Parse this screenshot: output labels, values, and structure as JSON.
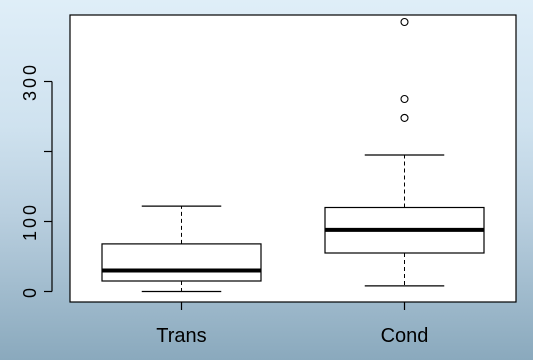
{
  "chart_data": {
    "type": "boxplot",
    "categories": [
      "Trans",
      "Cond"
    ],
    "ylim": [
      -15,
      395
    ],
    "yticks": [
      0,
      100,
      200,
      300
    ],
    "ytick_labels": [
      "0",
      "100",
      "",
      "300"
    ],
    "boxes": [
      {
        "name": "Trans",
        "whisker_low": 0,
        "q1": 15,
        "median": 30,
        "q3": 68,
        "whisker_high": 122,
        "outliers": []
      },
      {
        "name": "Cond",
        "whisker_low": 8,
        "q1": 55,
        "median": 88,
        "q3": 120,
        "whisker_high": 195,
        "outliers": [
          248,
          275,
          385
        ]
      }
    ],
    "grid": false,
    "xlabel": "",
    "ylabel": ""
  }
}
